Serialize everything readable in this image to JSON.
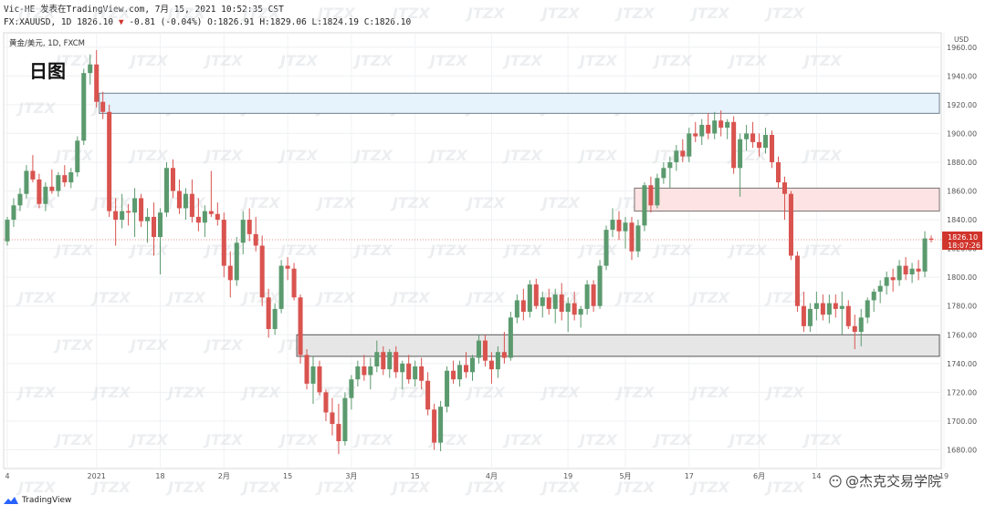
{
  "header": {
    "publisher_line": "Vic-HE 发表在TradingView.com, 7月 15, 2021 10:52:35 CST",
    "symbol": "FX:XAUUSD, 1D 1826.10",
    "change_arrow": "▼",
    "change": "-0.81 (-0.04%)",
    "ohlc": "O:1826.91 H:1829.06 L:1824.19 C:1826.10"
  },
  "legend": {
    "line1": "黄金/美元, 1D, FXCM",
    "line2": "日图"
  },
  "footer": {
    "brand": "TradingView",
    "watermark": "@杰克交易学院"
  },
  "chart_data": {
    "type": "candlestick",
    "title": "黄金/美元, 1D, FXCM",
    "y_unit": "USD",
    "ylim": [
      1667,
      1970
    ],
    "y_ticks": [
      1680,
      1700,
      1720,
      1740,
      1760,
      1780,
      1800,
      1820,
      1840,
      1860,
      1880,
      1900,
      1920,
      1940,
      1960
    ],
    "x_ticks": [
      {
        "label": "4",
        "bar": 0
      },
      {
        "label": "2021",
        "bar": 14
      },
      {
        "label": "18",
        "bar": 24
      },
      {
        "label": "2月",
        "bar": 34
      },
      {
        "label": "15",
        "bar": 44
      },
      {
        "label": "3月",
        "bar": 54
      },
      {
        "label": "15",
        "bar": 64
      },
      {
        "label": "4月",
        "bar": 76
      },
      {
        "label": "19",
        "bar": 88
      },
      {
        "label": "5月",
        "bar": 97
      },
      {
        "label": "17",
        "bar": 107
      },
      {
        "label": "6月",
        "bar": 118
      },
      {
        "label": "14",
        "bar": 127
      },
      {
        "label": "19",
        "bar": 147
      }
    ],
    "last_price": "1826.10",
    "countdown": "18:07:26",
    "colors": {
      "up": "#5b9a6e",
      "down": "#d9534f",
      "last_price": "#d0342c"
    },
    "candles": [
      [
        1825,
        1842,
        1822,
        1840
      ],
      [
        1840,
        1855,
        1835,
        1850
      ],
      [
        1850,
        1862,
        1846,
        1858
      ],
      [
        1858,
        1878,
        1855,
        1874
      ],
      [
        1874,
        1885,
        1866,
        1868
      ],
      [
        1868,
        1872,
        1848,
        1851
      ],
      [
        1851,
        1866,
        1846,
        1863
      ],
      [
        1863,
        1875,
        1858,
        1860
      ],
      [
        1860,
        1873,
        1856,
        1871
      ],
      [
        1871,
        1878,
        1863,
        1866
      ],
      [
        1866,
        1876,
        1862,
        1873
      ],
      [
        1873,
        1898,
        1870,
        1895
      ],
      [
        1895,
        1945,
        1892,
        1942
      ],
      [
        1942,
        1955,
        1934,
        1948
      ],
      [
        1948,
        1958,
        1918,
        1922
      ],
      [
        1922,
        1929,
        1910,
        1915
      ],
      [
        1915,
        1920,
        1842,
        1846
      ],
      [
        1846,
        1855,
        1822,
        1840
      ],
      [
        1840,
        1858,
        1834,
        1846
      ],
      [
        1846,
        1851,
        1836,
        1845
      ],
      [
        1845,
        1862,
        1828,
        1855
      ],
      [
        1855,
        1858,
        1835,
        1839
      ],
      [
        1839,
        1848,
        1824,
        1842
      ],
      [
        1842,
        1852,
        1815,
        1828
      ],
      [
        1828,
        1848,
        1802,
        1845
      ],
      [
        1845,
        1880,
        1842,
        1876
      ],
      [
        1876,
        1882,
        1855,
        1860
      ],
      [
        1860,
        1868,
        1844,
        1848
      ],
      [
        1848,
        1862,
        1840,
        1858
      ],
      [
        1858,
        1868,
        1838,
        1842
      ],
      [
        1842,
        1855,
        1832,
        1838
      ],
      [
        1838,
        1850,
        1828,
        1846
      ],
      [
        1846,
        1874,
        1842,
        1844
      ],
      [
        1844,
        1852,
        1836,
        1840
      ],
      [
        1840,
        1845,
        1800,
        1808
      ],
      [
        1808,
        1818,
        1786,
        1798
      ],
      [
        1798,
        1828,
        1794,
        1824
      ],
      [
        1824,
        1846,
        1816,
        1840
      ],
      [
        1840,
        1848,
        1825,
        1830
      ],
      [
        1830,
        1842,
        1818,
        1822
      ],
      [
        1822,
        1829,
        1780,
        1786
      ],
      [
        1786,
        1792,
        1758,
        1764
      ],
      [
        1764,
        1782,
        1760,
        1778
      ],
      [
        1778,
        1812,
        1775,
        1808
      ],
      [
        1808,
        1814,
        1798,
        1806
      ],
      [
        1806,
        1810,
        1784,
        1786
      ],
      [
        1786,
        1788,
        1740,
        1746
      ],
      [
        1746,
        1750,
        1722,
        1726
      ],
      [
        1726,
        1745,
        1712,
        1738
      ],
      [
        1738,
        1742,
        1718,
        1720
      ],
      [
        1720,
        1722,
        1700,
        1706
      ],
      [
        1706,
        1716,
        1690,
        1698
      ],
      [
        1698,
        1712,
        1677,
        1686
      ],
      [
        1686,
        1720,
        1683,
        1716
      ],
      [
        1716,
        1732,
        1708,
        1729
      ],
      [
        1729,
        1742,
        1724,
        1738
      ],
      [
        1738,
        1746,
        1728,
        1732
      ],
      [
        1732,
        1744,
        1722,
        1738
      ],
      [
        1738,
        1756,
        1734,
        1748
      ],
      [
        1748,
        1752,
        1732,
        1736
      ],
      [
        1736,
        1750,
        1730,
        1748
      ],
      [
        1748,
        1752,
        1730,
        1734
      ],
      [
        1734,
        1742,
        1722,
        1740
      ],
      [
        1740,
        1746,
        1726,
        1729
      ],
      [
        1729,
        1742,
        1724,
        1738
      ],
      [
        1738,
        1744,
        1722,
        1728
      ],
      [
        1728,
        1734,
        1704,
        1708
      ],
      [
        1708,
        1712,
        1680,
        1685
      ],
      [
        1685,
        1714,
        1679,
        1710
      ],
      [
        1710,
        1738,
        1706,
        1735
      ],
      [
        1735,
        1742,
        1726,
        1729
      ],
      [
        1729,
        1742,
        1724,
        1739
      ],
      [
        1739,
        1748,
        1730,
        1734
      ],
      [
        1734,
        1746,
        1728,
        1744
      ],
      [
        1744,
        1760,
        1740,
        1756
      ],
      [
        1756,
        1760,
        1738,
        1742
      ],
      [
        1742,
        1748,
        1726,
        1736
      ],
      [
        1736,
        1752,
        1730,
        1748
      ],
      [
        1748,
        1762,
        1740,
        1744
      ],
      [
        1744,
        1776,
        1742,
        1772
      ],
      [
        1772,
        1788,
        1768,
        1784
      ],
      [
        1784,
        1792,
        1770,
        1776
      ],
      [
        1776,
        1798,
        1772,
        1795
      ],
      [
        1795,
        1799,
        1778,
        1780
      ],
      [
        1780,
        1790,
        1772,
        1786
      ],
      [
        1786,
        1792,
        1774,
        1778
      ],
      [
        1778,
        1792,
        1768,
        1788
      ],
      [
        1788,
        1796,
        1770,
        1776
      ],
      [
        1776,
        1786,
        1762,
        1782
      ],
      [
        1782,
        1790,
        1770,
        1774
      ],
      [
        1774,
        1780,
        1765,
        1778
      ],
      [
        1778,
        1798,
        1774,
        1795
      ],
      [
        1795,
        1798,
        1776,
        1780
      ],
      [
        1780,
        1812,
        1778,
        1808
      ],
      [
        1808,
        1836,
        1805,
        1833
      ],
      [
        1833,
        1848,
        1828,
        1840
      ],
      [
        1840,
        1846,
        1826,
        1832
      ],
      [
        1832,
        1842,
        1820,
        1838
      ],
      [
        1838,
        1842,
        1812,
        1818
      ],
      [
        1818,
        1840,
        1814,
        1836
      ],
      [
        1836,
        1866,
        1832,
        1864
      ],
      [
        1864,
        1870,
        1845,
        1850
      ],
      [
        1850,
        1872,
        1848,
        1869
      ],
      [
        1869,
        1880,
        1865,
        1876
      ],
      [
        1876,
        1884,
        1862,
        1880
      ],
      [
        1880,
        1892,
        1874,
        1888
      ],
      [
        1888,
        1896,
        1880,
        1884
      ],
      [
        1884,
        1904,
        1880,
        1900
      ],
      [
        1900,
        1908,
        1894,
        1898
      ],
      [
        1898,
        1910,
        1892,
        1906
      ],
      [
        1906,
        1914,
        1896,
        1900
      ],
      [
        1900,
        1915,
        1896,
        1909
      ],
      [
        1909,
        1916,
        1898,
        1904
      ],
      [
        1904,
        1910,
        1896,
        1908
      ],
      [
        1908,
        1912,
        1872,
        1876
      ],
      [
        1876,
        1900,
        1856,
        1896
      ],
      [
        1896,
        1906,
        1888,
        1900
      ],
      [
        1900,
        1908,
        1890,
        1894
      ],
      [
        1894,
        1900,
        1884,
        1890
      ],
      [
        1890,
        1904,
        1886,
        1899
      ],
      [
        1899,
        1902,
        1876,
        1880
      ],
      [
        1880,
        1884,
        1862,
        1866
      ],
      [
        1866,
        1870,
        1840,
        1858
      ],
      [
        1858,
        1860,
        1812,
        1815
      ],
      [
        1815,
        1818,
        1776,
        1780
      ],
      [
        1780,
        1790,
        1762,
        1766
      ],
      [
        1766,
        1782,
        1762,
        1778
      ],
      [
        1778,
        1790,
        1770,
        1782
      ],
      [
        1782,
        1788,
        1770,
        1774
      ],
      [
        1774,
        1788,
        1768,
        1782
      ],
      [
        1782,
        1788,
        1772,
        1778
      ],
      [
        1778,
        1790,
        1760,
        1780
      ],
      [
        1780,
        1784,
        1764,
        1766
      ],
      [
        1766,
        1774,
        1750,
        1762
      ],
      [
        1762,
        1778,
        1752,
        1772
      ],
      [
        1772,
        1786,
        1768,
        1784
      ],
      [
        1784,
        1792,
        1776,
        1790
      ],
      [
        1790,
        1798,
        1782,
        1794
      ],
      [
        1794,
        1804,
        1788,
        1800
      ],
      [
        1800,
        1806,
        1790,
        1798
      ],
      [
        1798,
        1812,
        1794,
        1808
      ],
      [
        1808,
        1814,
        1798,
        1802
      ],
      [
        1802,
        1810,
        1796,
        1806
      ],
      [
        1806,
        1812,
        1798,
        1804
      ],
      [
        1804,
        1832,
        1800,
        1827
      ],
      [
        1826.91,
        1829.06,
        1824.19,
        1826.1
      ]
    ],
    "zones": [
      {
        "name": "resistance-zone-top",
        "y1": 1914,
        "y2": 1928,
        "from_bar": 15,
        "to_bar": "end",
        "fill": "#e6f2fc",
        "stroke": "#6e7f8c"
      },
      {
        "name": "resistance-zone-mid",
        "y1": 1846,
        "y2": 1862,
        "from_bar": 99,
        "to_bar": "end",
        "fill": "#fde3e3",
        "stroke": "#7a6f6f"
      },
      {
        "name": "support-zone",
        "y1": 1745,
        "y2": 1760,
        "from_bar": 46,
        "to_bar": "end",
        "fill": "#e6e6e6",
        "stroke": "#555555"
      }
    ]
  }
}
